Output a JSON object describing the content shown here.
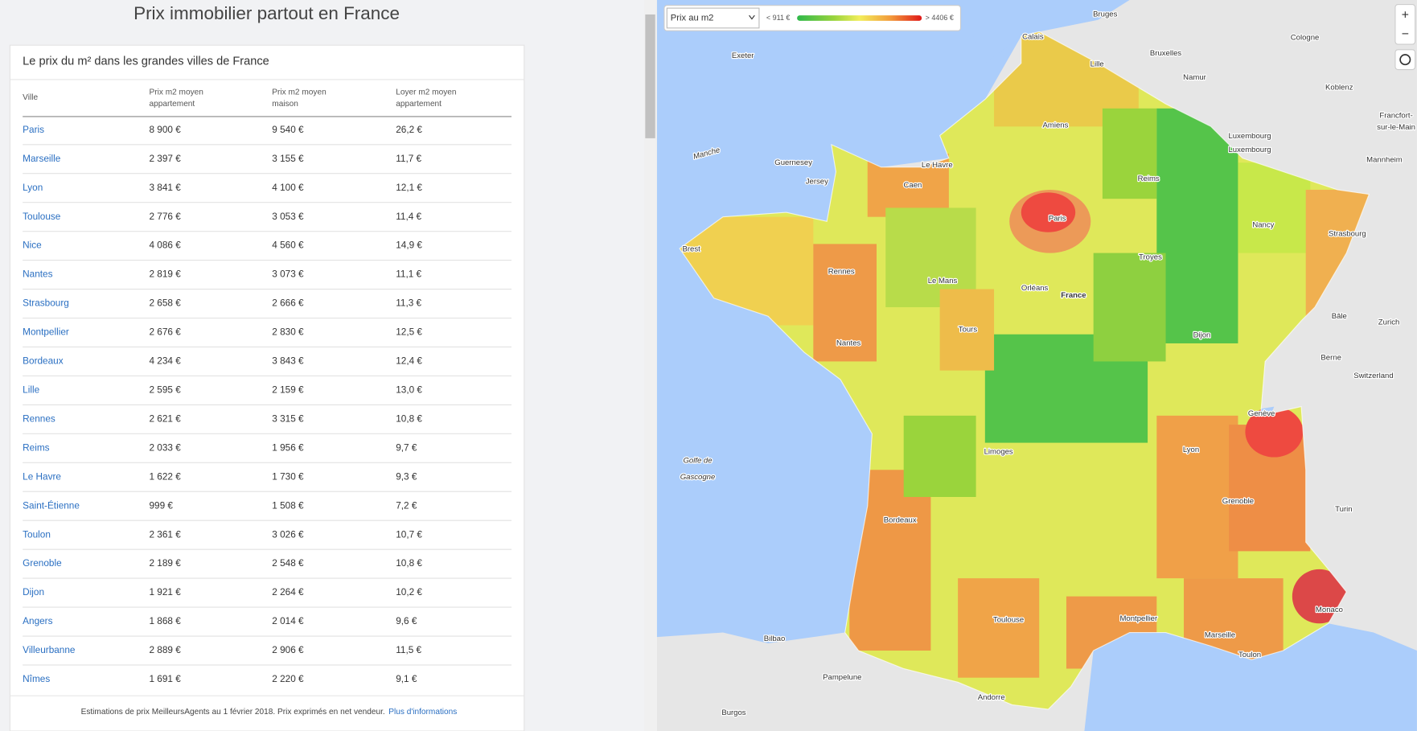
{
  "page": {
    "title": "Prix immobilier partout en France"
  },
  "table": {
    "title": "Le prix du m² dans les grandes villes de France",
    "headers": [
      [
        "Ville"
      ],
      [
        "Prix m2 moyen",
        "appartement"
      ],
      [
        "Prix m2 moyen",
        "maison"
      ],
      [
        "Loyer m2 moyen",
        "appartement"
      ]
    ],
    "rows": [
      [
        "Paris",
        "8 900 €",
        "9 540 €",
        "26,2 €"
      ],
      [
        "Marseille",
        "2 397 €",
        "3 155 €",
        "11,7 €"
      ],
      [
        "Lyon",
        "3 841 €",
        "4 100 €",
        "12,1 €"
      ],
      [
        "Toulouse",
        "2 776 €",
        "3 053 €",
        "11,4 €"
      ],
      [
        "Nice",
        "4 086 €",
        "4 560 €",
        "14,9 €"
      ],
      [
        "Nantes",
        "2 819 €",
        "3 073 €",
        "11,1 €"
      ],
      [
        "Strasbourg",
        "2 658 €",
        "2 666 €",
        "11,3 €"
      ],
      [
        "Montpellier",
        "2 676 €",
        "2 830 €",
        "12,5 €"
      ],
      [
        "Bordeaux",
        "4 234 €",
        "3 843 €",
        "12,4 €"
      ],
      [
        "Lille",
        "2 595 €",
        "2 159 €",
        "13,0 €"
      ],
      [
        "Rennes",
        "2 621 €",
        "3 315 €",
        "10,8 €"
      ],
      [
        "Reims",
        "2 033 €",
        "1 956 €",
        "9,7 €"
      ],
      [
        "Le Havre",
        "1 622 €",
        "1 730 €",
        "9,3 €"
      ],
      [
        "Saint-Étienne",
        "999 €",
        "1 508 €",
        "7,2 €"
      ],
      [
        "Toulon",
        "2 361 €",
        "3 026 €",
        "10,7 €"
      ],
      [
        "Grenoble",
        "2 189 €",
        "2 548 €",
        "10,8 €"
      ],
      [
        "Dijon",
        "1 921 €",
        "2 264 €",
        "10,2 €"
      ],
      [
        "Angers",
        "1 868 €",
        "2 014 €",
        "9,6 €"
      ],
      [
        "Villeurbanne",
        "2 889 €",
        "2 906 €",
        "11,5 €"
      ],
      [
        "Nîmes",
        "1 691 €",
        "2 220 €",
        "9,1 €"
      ]
    ],
    "footer": "Estimations de prix MeilleursAgents au 1 février 2018. Prix exprimés en net vendeur.",
    "footer_link": "Plus d'informations"
  },
  "map": {
    "selector": "Prix au m2",
    "legend_min": "< 911 €",
    "legend_max": "> 4406 €",
    "zoom_in": "+",
    "zoom_out": "−",
    "labels": [
      "Bruges",
      "Calais",
      "Lille",
      "Bruxelles",
      "Namur",
      "Cologne",
      "Koblenz",
      "Francfort-",
      "sur-le-Main",
      "Mannheim",
      "Exeter",
      "Manche",
      "Guernesey",
      "Jersey",
      "Le Havre",
      "Caen",
      "Amiens",
      "Reims",
      "Luxembourg",
      "Luxembourg",
      "Paris",
      "Brest",
      "Rennes",
      "Le Mans",
      "Orléans",
      "France",
      "Nancy",
      "Strasbourg",
      "Troyes",
      "Tours",
      "Nantes",
      "Dijon",
      "Bâle",
      "Zurich",
      "Berne",
      "Switzerland",
      "Genève",
      "Lyon",
      "Limoges",
      "Grenoble",
      "Turin",
      "Bordeaux",
      "Golfe de",
      "Gascogne",
      "Toulouse",
      "Montpellier",
      "Marseille",
      "Toulon",
      "Monaco",
      "Bilbao",
      "Pampelune",
      "Andorre",
      "Burgos"
    ]
  }
}
